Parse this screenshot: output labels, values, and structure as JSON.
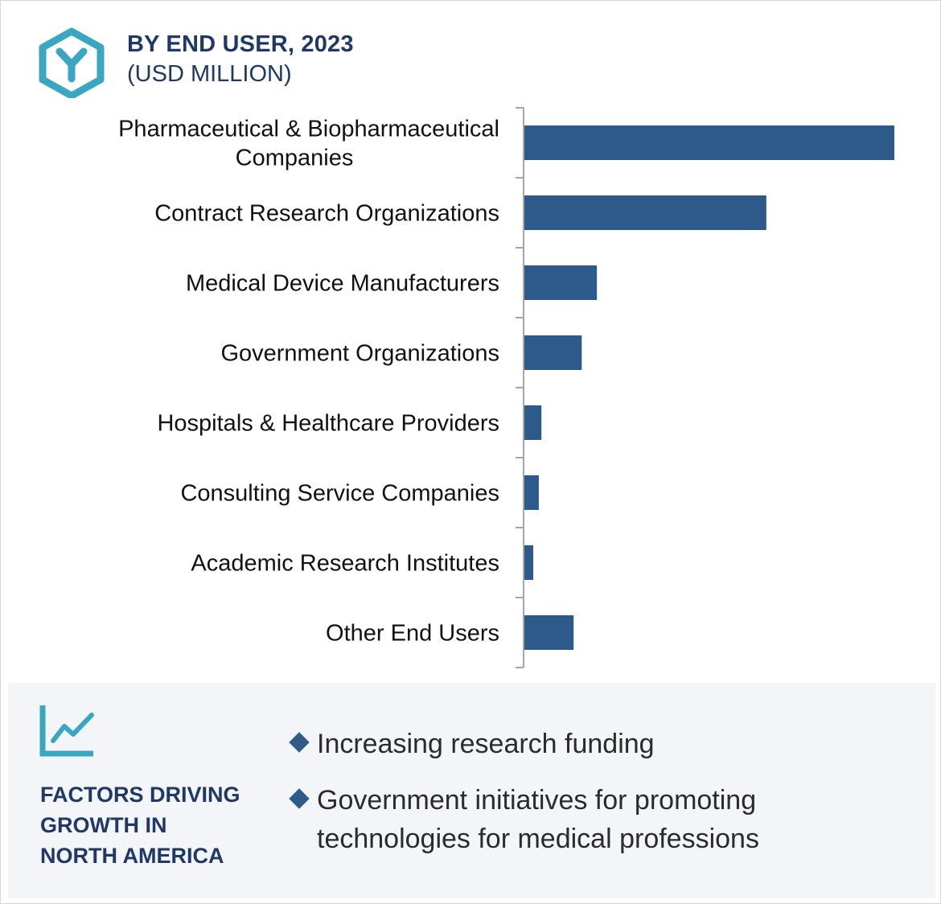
{
  "header": {
    "title": "BY END USER, 2023",
    "subtitle": "(USD MILLION)",
    "logo_icon": "hexagon-y-logo-icon"
  },
  "colors": {
    "bar": "#2d5a8a",
    "axis": "#a6a6a6",
    "heading": "#1f3864",
    "accent": "#3aa6c2",
    "panel": "#f3f5f9"
  },
  "chart_data": {
    "type": "bar",
    "orientation": "horizontal",
    "title": "BY END USER, 2023",
    "subtitle": "(USD MILLION)",
    "categories": [
      [
        "Pharmaceutical & Biopharmaceutical",
        "Companies"
      ],
      [
        "Contract Research Organizations"
      ],
      [
        "Medical Device Manufacturers"
      ],
      [
        "Government Organizations"
      ],
      [
        "Hospitals & Healthcare Providers"
      ],
      [
        "Consulting Service Companies"
      ],
      [
        "Academic Research Institutes"
      ],
      [
        "Other End Users"
      ]
    ],
    "values": [
      100,
      65.4,
      19.6,
      15.5,
      4.6,
      3.9,
      2.4,
      13.3
    ],
    "value_note": "relative bar lengths; axis unlabeled",
    "xlim": [
      0,
      100
    ],
    "grid": false,
    "legend": "none"
  },
  "factors": {
    "icon": "trend-chart-icon",
    "title_lines": [
      "FACTORS DRIVING",
      "GROWTH IN",
      "NORTH AMERICA"
    ],
    "items": [
      [
        "Increasing research funding"
      ],
      [
        "Government initiatives for promoting",
        "technologies for medical professions"
      ]
    ]
  }
}
